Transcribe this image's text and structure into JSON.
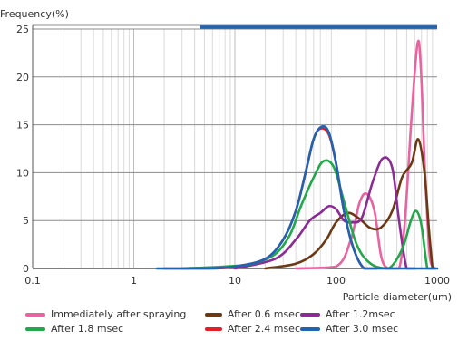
{
  "chart_data": {
    "type": "line",
    "title": "",
    "ylabel": "Frequency(%)",
    "xlabel": "Particle diameter(um)",
    "x_scale": "log",
    "xlim": [
      0.1,
      1000
    ],
    "ylim": [
      0,
      25
    ],
    "x_ticks": [
      {
        "value": 0.1,
        "label": "0.1"
      },
      {
        "value": 1,
        "label": "1"
      },
      {
        "value": 10,
        "label": "10"
      },
      {
        "value": 100,
        "label": "100"
      },
      {
        "value": 1000,
        "label": "1000"
      }
    ],
    "y_ticks": [
      {
        "value": 0,
        "label": "0"
      },
      {
        "value": 5,
        "label": "5"
      },
      {
        "value": 10,
        "label": "10"
      },
      {
        "value": 15,
        "label": "15"
      },
      {
        "value": 20,
        "label": "20"
      },
      {
        "value": 25,
        "label": "25"
      }
    ],
    "grid": "vertical log minor lines, horizontal major lines",
    "legend_placement": "bottom",
    "series": [
      {
        "name": "Immediately after spraying",
        "color": "#e8649f",
        "points": [
          [
            40,
            0
          ],
          [
            100,
            0.2
          ],
          [
            140,
            3
          ],
          [
            170,
            6.8
          ],
          [
            200,
            7.8
          ],
          [
            240,
            6
          ],
          [
            280,
            1.2
          ],
          [
            330,
            0
          ],
          [
            420,
            0
          ],
          [
            480,
            5
          ],
          [
            560,
            16
          ],
          [
            640,
            23.5
          ],
          [
            690,
            21
          ],
          [
            760,
            10
          ],
          [
            850,
            1
          ],
          [
            950,
            0
          ]
        ]
      },
      {
        "name": "After 0.6 msec",
        "color": "#6b3a14",
        "points": [
          [
            20,
            0
          ],
          [
            40,
            0.5
          ],
          [
            60,
            1.5
          ],
          [
            80,
            3
          ],
          [
            100,
            4.8
          ],
          [
            130,
            5.8
          ],
          [
            170,
            5.2
          ],
          [
            220,
            4.2
          ],
          [
            280,
            4.3
          ],
          [
            360,
            6
          ],
          [
            450,
            9.5
          ],
          [
            560,
            11
          ],
          [
            650,
            13.5
          ],
          [
            750,
            10
          ],
          [
            830,
            4
          ],
          [
            900,
            0
          ]
        ]
      },
      {
        "name": "After 1.2msec",
        "color": "#8b2c95",
        "points": [
          [
            10,
            0
          ],
          [
            25,
            1
          ],
          [
            40,
            3
          ],
          [
            55,
            5
          ],
          [
            70,
            5.8
          ],
          [
            85,
            6.5
          ],
          [
            100,
            6.2
          ],
          [
            120,
            5
          ],
          [
            145,
            4.8
          ],
          [
            180,
            5.3
          ],
          [
            230,
            9
          ],
          [
            290,
            11.5
          ],
          [
            360,
            10.5
          ],
          [
            420,
            5
          ],
          [
            500,
            0
          ],
          [
            600,
            0
          ]
        ]
      },
      {
        "name": "After 1.8 msec",
        "color": "#22a84a",
        "points": [
          [
            3,
            0
          ],
          [
            8,
            0.2
          ],
          [
            15,
            0.5
          ],
          [
            25,
            1.5
          ],
          [
            35,
            3.5
          ],
          [
            45,
            6.5
          ],
          [
            60,
            9.5
          ],
          [
            75,
            11.2
          ],
          [
            95,
            10.6
          ],
          [
            120,
            7
          ],
          [
            160,
            2.5
          ],
          [
            220,
            0.5
          ],
          [
            330,
            0
          ],
          [
            450,
            2
          ],
          [
            550,
            5
          ],
          [
            620,
            6
          ],
          [
            700,
            4.5
          ],
          [
            800,
            0
          ],
          [
            900,
            0
          ]
        ]
      },
      {
        "name": "After 2.4 msec",
        "color": "#e31e27",
        "points": [
          [
            2,
            0
          ],
          [
            6,
            0
          ],
          [
            10,
            0.2
          ],
          [
            20,
            1
          ],
          [
            30,
            3
          ],
          [
            40,
            6
          ],
          [
            50,
            10
          ],
          [
            60,
            13.5
          ],
          [
            70,
            14.6
          ],
          [
            85,
            14
          ],
          [
            100,
            11
          ],
          [
            120,
            6
          ],
          [
            150,
            2
          ],
          [
            190,
            0
          ],
          [
            250,
            0
          ]
        ]
      },
      {
        "name": "After 3.0 msec",
        "color": "#1f63b2",
        "points": [
          [
            1.7,
            0
          ],
          [
            5,
            0
          ],
          [
            10,
            0.2
          ],
          [
            20,
            1
          ],
          [
            30,
            3
          ],
          [
            40,
            6
          ],
          [
            50,
            10
          ],
          [
            60,
            13.5
          ],
          [
            72,
            14.8
          ],
          [
            85,
            14.2
          ],
          [
            100,
            11
          ],
          [
            120,
            6
          ],
          [
            150,
            2
          ],
          [
            190,
            0
          ],
          [
            250,
            0
          ],
          [
            1000,
            0
          ]
        ]
      }
    ]
  }
}
